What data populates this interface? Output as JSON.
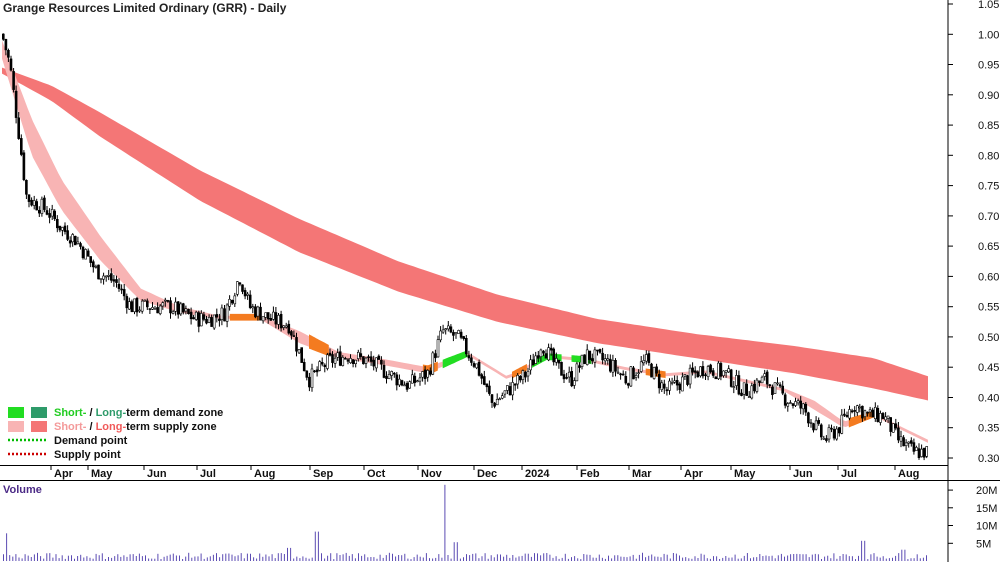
{
  "chart_data": [
    {
      "type": "candlestick",
      "title": "Grange Resources Limited Ordinary (GRR) - Daily",
      "ylim": [
        0.28,
        1.05
      ],
      "y_ticks": [
        "1.05",
        "1.00",
        "0.95",
        "0.90",
        "0.85",
        "0.80",
        "0.75",
        "0.70",
        "0.65",
        "0.60",
        "0.55",
        "0.50",
        "0.45",
        "0.40",
        "0.35",
        "0.30"
      ],
      "x_labels": [
        "Apr",
        "May",
        "Jun",
        "Jul",
        "Aug",
        "Sep",
        "Oct",
        "Nov",
        "Dec",
        "2024",
        "Feb",
        "Mar",
        "Apr",
        "May",
        "Jun",
        "Jul",
        "Aug"
      ],
      "price_path": [
        {
          "t": 0.0,
          "p": 1.0
        },
        {
          "t": 0.8,
          "p": 0.95
        },
        {
          "t": 1.6,
          "p": 0.85
        },
        {
          "t": 2.5,
          "p": 0.73
        },
        {
          "t": 4.5,
          "p": 0.71
        },
        {
          "t": 6.0,
          "p": 0.68
        },
        {
          "t": 7.5,
          "p": 0.66
        },
        {
          "t": 9.5,
          "p": 0.61
        },
        {
          "t": 11.5,
          "p": 0.59
        },
        {
          "t": 13.0,
          "p": 0.55
        },
        {
          "t": 15.0,
          "p": 0.55
        },
        {
          "t": 17.0,
          "p": 0.55
        },
        {
          "t": 19.5,
          "p": 0.53
        },
        {
          "t": 21.0,
          "p": 0.53
        },
        {
          "t": 22.5,
          "p": 0.54
        },
        {
          "t": 24.0,
          "p": 0.6
        },
        {
          "t": 25.0,
          "p": 0.55
        },
        {
          "t": 27.0,
          "p": 0.53
        },
        {
          "t": 29.0,
          "p": 0.52
        },
        {
          "t": 31.0,
          "p": 0.43
        },
        {
          "t": 33.0,
          "p": 0.46
        },
        {
          "t": 35.0,
          "p": 0.47
        },
        {
          "t": 37.0,
          "p": 0.46
        },
        {
          "t": 39.0,
          "p": 0.44
        },
        {
          "t": 41.0,
          "p": 0.42
        },
        {
          "t": 43.0,
          "p": 0.44
        },
        {
          "t": 44.5,
          "p": 0.51
        },
        {
          "t": 46.0,
          "p": 0.5
        },
        {
          "t": 48.0,
          "p": 0.45
        },
        {
          "t": 49.5,
          "p": 0.39
        },
        {
          "t": 51.0,
          "p": 0.41
        },
        {
          "t": 53.0,
          "p": 0.44
        },
        {
          "t": 54.5,
          "p": 0.49
        },
        {
          "t": 56.0,
          "p": 0.45
        },
        {
          "t": 57.5,
          "p": 0.43
        },
        {
          "t": 59.0,
          "p": 0.47
        },
        {
          "t": 61.0,
          "p": 0.46
        },
        {
          "t": 63.0,
          "p": 0.43
        },
        {
          "t": 65.0,
          "p": 0.46
        },
        {
          "t": 67.0,
          "p": 0.41
        },
        {
          "t": 69.0,
          "p": 0.43
        },
        {
          "t": 71.0,
          "p": 0.45
        },
        {
          "t": 73.0,
          "p": 0.44
        },
        {
          "t": 75.0,
          "p": 0.41
        },
        {
          "t": 77.0,
          "p": 0.43
        },
        {
          "t": 79.0,
          "p": 0.4
        },
        {
          "t": 81.0,
          "p": 0.38
        },
        {
          "t": 83.0,
          "p": 0.33
        },
        {
          "t": 84.5,
          "p": 0.35
        },
        {
          "t": 86.0,
          "p": 0.39
        },
        {
          "t": 87.5,
          "p": 0.37
        },
        {
          "t": 89.0,
          "p": 0.37
        },
        {
          "t": 90.5,
          "p": 0.33
        },
        {
          "t": 92.0,
          "p": 0.31
        },
        {
          "t": 93.5,
          "p": 0.31
        }
      ],
      "long_term_zone": [
        {
          "t": 0,
          "top": 0.945,
          "bottom": 0.935
        },
        {
          "t": 5,
          "top": 0.915,
          "bottom": 0.89
        },
        {
          "t": 10,
          "top": 0.87,
          "bottom": 0.83
        },
        {
          "t": 20,
          "top": 0.775,
          "bottom": 0.725
        },
        {
          "t": 30,
          "top": 0.695,
          "bottom": 0.64
        },
        {
          "t": 40,
          "top": 0.625,
          "bottom": 0.575
        },
        {
          "t": 50,
          "top": 0.57,
          "bottom": 0.525
        },
        {
          "t": 60,
          "top": 0.53,
          "bottom": 0.49
        },
        {
          "t": 70,
          "top": 0.505,
          "bottom": 0.465
        },
        {
          "t": 80,
          "top": 0.485,
          "bottom": 0.44
        },
        {
          "t": 88,
          "top": 0.465,
          "bottom": 0.415
        },
        {
          "t": 93.5,
          "top": 0.435,
          "bottom": 0.395
        }
      ],
      "short_term_zone": [
        {
          "t": 0,
          "top": 0.99,
          "bottom": 0.96
        },
        {
          "t": 3,
          "top": 0.86,
          "bottom": 0.8
        },
        {
          "t": 6,
          "top": 0.76,
          "bottom": 0.71
        },
        {
          "t": 10,
          "top": 0.665,
          "bottom": 0.625
        },
        {
          "t": 14,
          "top": 0.58,
          "bottom": 0.56
        },
        {
          "t": 18,
          "top": 0.55,
          "bottom": 0.54
        },
        {
          "t": 22,
          "top": 0.535,
          "bottom": 0.53
        },
        {
          "t": 26,
          "top": 0.535,
          "bottom": 0.53
        },
        {
          "t": 30,
          "top": 0.51,
          "bottom": 0.49
        },
        {
          "t": 34,
          "top": 0.475,
          "bottom": 0.465
        },
        {
          "t": 38,
          "top": 0.465,
          "bottom": 0.455
        },
        {
          "t": 43,
          "top": 0.45,
          "bottom": 0.44
        },
        {
          "t": 47,
          "top": 0.475,
          "bottom": 0.47
        },
        {
          "t": 51,
          "top": 0.435,
          "bottom": 0.43
        },
        {
          "t": 55,
          "top": 0.47,
          "bottom": 0.465
        },
        {
          "t": 59,
          "top": 0.465,
          "bottom": 0.46
        },
        {
          "t": 63,
          "top": 0.45,
          "bottom": 0.445
        },
        {
          "t": 67,
          "top": 0.44,
          "bottom": 0.435
        },
        {
          "t": 71,
          "top": 0.445,
          "bottom": 0.44
        },
        {
          "t": 75,
          "top": 0.43,
          "bottom": 0.425
        },
        {
          "t": 79,
          "top": 0.415,
          "bottom": 0.41
        },
        {
          "t": 82,
          "top": 0.395,
          "bottom": 0.38
        },
        {
          "t": 85,
          "top": 0.36,
          "bottom": 0.35
        },
        {
          "t": 88,
          "top": 0.375,
          "bottom": 0.37
        },
        {
          "t": 91,
          "top": 0.35,
          "bottom": 0.345
        },
        {
          "t": 93.5,
          "top": 0.33,
          "bottom": 0.325
        }
      ],
      "zone_highlights": [
        {
          "kind": "short-supply-orange",
          "t0": 23.0,
          "t1": 26.0
        },
        {
          "kind": "short-supply-orange",
          "t0": 31.0,
          "t1": 33.0
        },
        {
          "kind": "short-supply-orange",
          "t0": 42.5,
          "t1": 44.0
        },
        {
          "kind": "short-demand-green",
          "t0": 44.5,
          "t1": 47.0
        },
        {
          "kind": "short-supply-orange",
          "t0": 51.5,
          "t1": 53.0
        },
        {
          "kind": "short-demand-green",
          "t0": 53.5,
          "t1": 56.5
        },
        {
          "kind": "short-demand-green",
          "t0": 57.5,
          "t1": 59.5
        },
        {
          "kind": "short-supply-orange",
          "t0": 65.0,
          "t1": 67.0
        },
        {
          "kind": "short-supply-orange",
          "t0": 85.5,
          "t1": 88.5
        }
      ],
      "colors": {
        "short_demand": "#22dd22",
        "long_demand": "#2e9b6a",
        "short_supply": "#f8b4b4",
        "long_supply": "#f47676",
        "supply_highlight": "#f47b20",
        "demand_point": "#00bb00",
        "supply_point": "#cc0000",
        "candle": "#000000"
      },
      "legend": {
        "zones": {
          "short_prefix": "Short-",
          "long_prefix": "Long-",
          "separator": " / ",
          "demand_suffix": "term demand zone",
          "supply_suffix": "term supply zone"
        },
        "demand_point": "Demand point",
        "supply_point": "Supply point",
        "placement": "bottom-left"
      }
    },
    {
      "type": "bar",
      "title": "Volume",
      "ylim": [
        0,
        22000000
      ],
      "y_ticks": [
        "20M",
        "15M",
        "10M",
        "5M"
      ],
      "spikes": [
        {
          "t": 44.8,
          "v": 21500000
        },
        {
          "t": 31.8,
          "v": 8300000
        },
        {
          "t": 0.5,
          "v": 7800000
        },
        {
          "t": 29.0,
          "v": 3700000
        },
        {
          "t": 45.8,
          "v": 5300000
        },
        {
          "t": 87.0,
          "v": 5700000
        },
        {
          "t": 91.0,
          "v": 3200000
        }
      ],
      "typical_volume": 1500000,
      "bar_color": "#5b4bb3"
    }
  ]
}
